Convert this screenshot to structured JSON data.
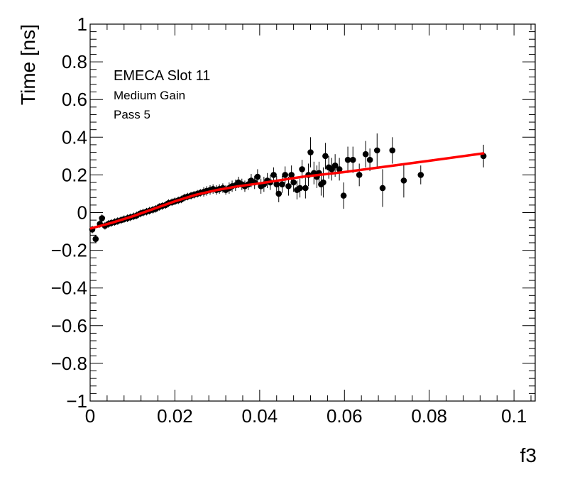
{
  "chart_data": {
    "type": "scatter",
    "xlabel": "f3",
    "ylabel": "Time [ns]",
    "xlim": [
      0,
      0.105
    ],
    "ylim": [
      -1,
      1
    ],
    "grid": false,
    "x_ticks": [
      0,
      0.02,
      0.04,
      0.06,
      0.08,
      0.1
    ],
    "x_tick_labels": [
      "0",
      "0.02",
      "0.04",
      "0.06",
      "0.08",
      "0.1"
    ],
    "y_ticks": [
      -1,
      -0.8,
      -0.6,
      -0.4,
      -0.2,
      0,
      0.2,
      0.4,
      0.6,
      0.8,
      1
    ],
    "y_tick_labels": [
      "−1",
      "−0.8",
      "−0.6",
      "−0.4",
      "−0.2",
      "0",
      "0.2",
      "0.4",
      "0.6",
      "0.8",
      "1"
    ],
    "annotations": [
      "EMECA Slot 11",
      "Medium Gain",
      "Pass 5"
    ],
    "marker_color": "#000000",
    "fit_color": "#ff0000",
    "series": [
      {
        "kind": "points",
        "points": [
          [
            0.0005,
            -0.09,
            0.02
          ],
          [
            0.0013,
            -0.14,
            0.02
          ],
          [
            0.0023,
            -0.06,
            0.02
          ],
          [
            0.0028,
            -0.03,
            0.02
          ],
          [
            0.0035,
            -0.07,
            0.02
          ],
          [
            0.0043,
            -0.06,
            0.02
          ],
          [
            0.005,
            -0.055,
            0.02
          ],
          [
            0.0058,
            -0.05,
            0.02
          ],
          [
            0.0065,
            -0.045,
            0.02
          ],
          [
            0.0073,
            -0.04,
            0.02
          ],
          [
            0.008,
            -0.035,
            0.02
          ],
          [
            0.0088,
            -0.03,
            0.02
          ],
          [
            0.0095,
            -0.025,
            0.02
          ],
          [
            0.0103,
            -0.02,
            0.02
          ],
          [
            0.011,
            -0.015,
            0.02
          ],
          [
            0.0118,
            -0.005,
            0.02
          ],
          [
            0.0125,
            0.0,
            0.02
          ],
          [
            0.0133,
            0.005,
            0.02
          ],
          [
            0.014,
            0.01,
            0.02
          ],
          [
            0.0148,
            0.015,
            0.02
          ],
          [
            0.0155,
            0.02,
            0.02
          ],
          [
            0.0163,
            0.03,
            0.02
          ],
          [
            0.017,
            0.035,
            0.02
          ],
          [
            0.0178,
            0.04,
            0.02
          ],
          [
            0.0185,
            0.05,
            0.02
          ],
          [
            0.0193,
            0.055,
            0.02
          ],
          [
            0.02,
            0.06,
            0.02
          ],
          [
            0.0208,
            0.065,
            0.02
          ],
          [
            0.0215,
            0.07,
            0.02
          ],
          [
            0.0223,
            0.08,
            0.02
          ],
          [
            0.023,
            0.085,
            0.02
          ],
          [
            0.0238,
            0.09,
            0.02
          ],
          [
            0.0245,
            0.095,
            0.02
          ],
          [
            0.0253,
            0.1,
            0.02
          ],
          [
            0.026,
            0.105,
            0.02
          ],
          [
            0.0268,
            0.11,
            0.025
          ],
          [
            0.0275,
            0.115,
            0.025
          ],
          [
            0.0283,
            0.12,
            0.025
          ],
          [
            0.029,
            0.125,
            0.025
          ],
          [
            0.0298,
            0.12,
            0.025
          ],
          [
            0.0305,
            0.125,
            0.025
          ],
          [
            0.0313,
            0.13,
            0.025
          ],
          [
            0.032,
            0.12,
            0.025
          ],
          [
            0.0328,
            0.13,
            0.03
          ],
          [
            0.0335,
            0.14,
            0.03
          ],
          [
            0.0343,
            0.145,
            0.03
          ],
          [
            0.035,
            0.16,
            0.03
          ],
          [
            0.0358,
            0.15,
            0.03
          ],
          [
            0.0365,
            0.14,
            0.03
          ],
          [
            0.0373,
            0.15,
            0.03
          ],
          [
            0.038,
            0.17,
            0.035
          ],
          [
            0.0388,
            0.16,
            0.035
          ],
          [
            0.0395,
            0.19,
            0.04
          ],
          [
            0.0403,
            0.14,
            0.04
          ],
          [
            0.041,
            0.15,
            0.04
          ],
          [
            0.0418,
            0.17,
            0.04
          ],
          [
            0.0425,
            0.16,
            0.04
          ],
          [
            0.0433,
            0.2,
            0.04
          ],
          [
            0.044,
            0.15,
            0.045
          ],
          [
            0.0445,
            0.1,
            0.045
          ],
          [
            0.0453,
            0.15,
            0.045
          ],
          [
            0.046,
            0.2,
            0.045
          ],
          [
            0.0468,
            0.14,
            0.05
          ],
          [
            0.0475,
            0.2,
            0.05
          ],
          [
            0.048,
            0.16,
            0.05
          ],
          [
            0.0488,
            0.12,
            0.05
          ],
          [
            0.0495,
            0.13,
            0.05
          ],
          [
            0.05,
            0.23,
            0.05
          ],
          [
            0.0508,
            0.13,
            0.055
          ],
          [
            0.0515,
            0.2,
            0.06
          ],
          [
            0.052,
            0.32,
            0.08
          ],
          [
            0.0528,
            0.21,
            0.06
          ],
          [
            0.0535,
            0.19,
            0.06
          ],
          [
            0.054,
            0.21,
            0.06
          ],
          [
            0.0545,
            0.15,
            0.06
          ],
          [
            0.055,
            0.16,
            0.08
          ],
          [
            0.0555,
            0.3,
            0.07
          ],
          [
            0.0563,
            0.24,
            0.06
          ],
          [
            0.057,
            0.23,
            0.06
          ],
          [
            0.0578,
            0.25,
            0.06
          ],
          [
            0.0588,
            0.23,
            0.06
          ],
          [
            0.0598,
            0.09,
            0.07
          ],
          [
            0.0608,
            0.28,
            0.07
          ],
          [
            0.062,
            0.28,
            0.07
          ],
          [
            0.0635,
            0.2,
            0.06
          ],
          [
            0.065,
            0.31,
            0.07
          ],
          [
            0.066,
            0.28,
            0.06
          ],
          [
            0.0677,
            0.33,
            0.09
          ],
          [
            0.069,
            0.13,
            0.1
          ],
          [
            0.0713,
            0.33,
            0.07
          ],
          [
            0.074,
            0.17,
            0.09
          ],
          [
            0.078,
            0.2,
            0.05
          ],
          [
            0.0928,
            0.3,
            0.06
          ]
        ]
      },
      {
        "kind": "fit",
        "points": [
          [
            0.0,
            -0.085
          ],
          [
            0.005,
            -0.055
          ],
          [
            0.01,
            -0.02
          ],
          [
            0.015,
            0.02
          ],
          [
            0.02,
            0.06
          ],
          [
            0.025,
            0.095
          ],
          [
            0.03,
            0.12
          ],
          [
            0.035,
            0.14
          ],
          [
            0.04,
            0.155
          ],
          [
            0.05,
            0.19
          ],
          [
            0.06,
            0.215
          ],
          [
            0.07,
            0.245
          ],
          [
            0.08,
            0.275
          ],
          [
            0.093,
            0.315
          ]
        ]
      }
    ]
  }
}
